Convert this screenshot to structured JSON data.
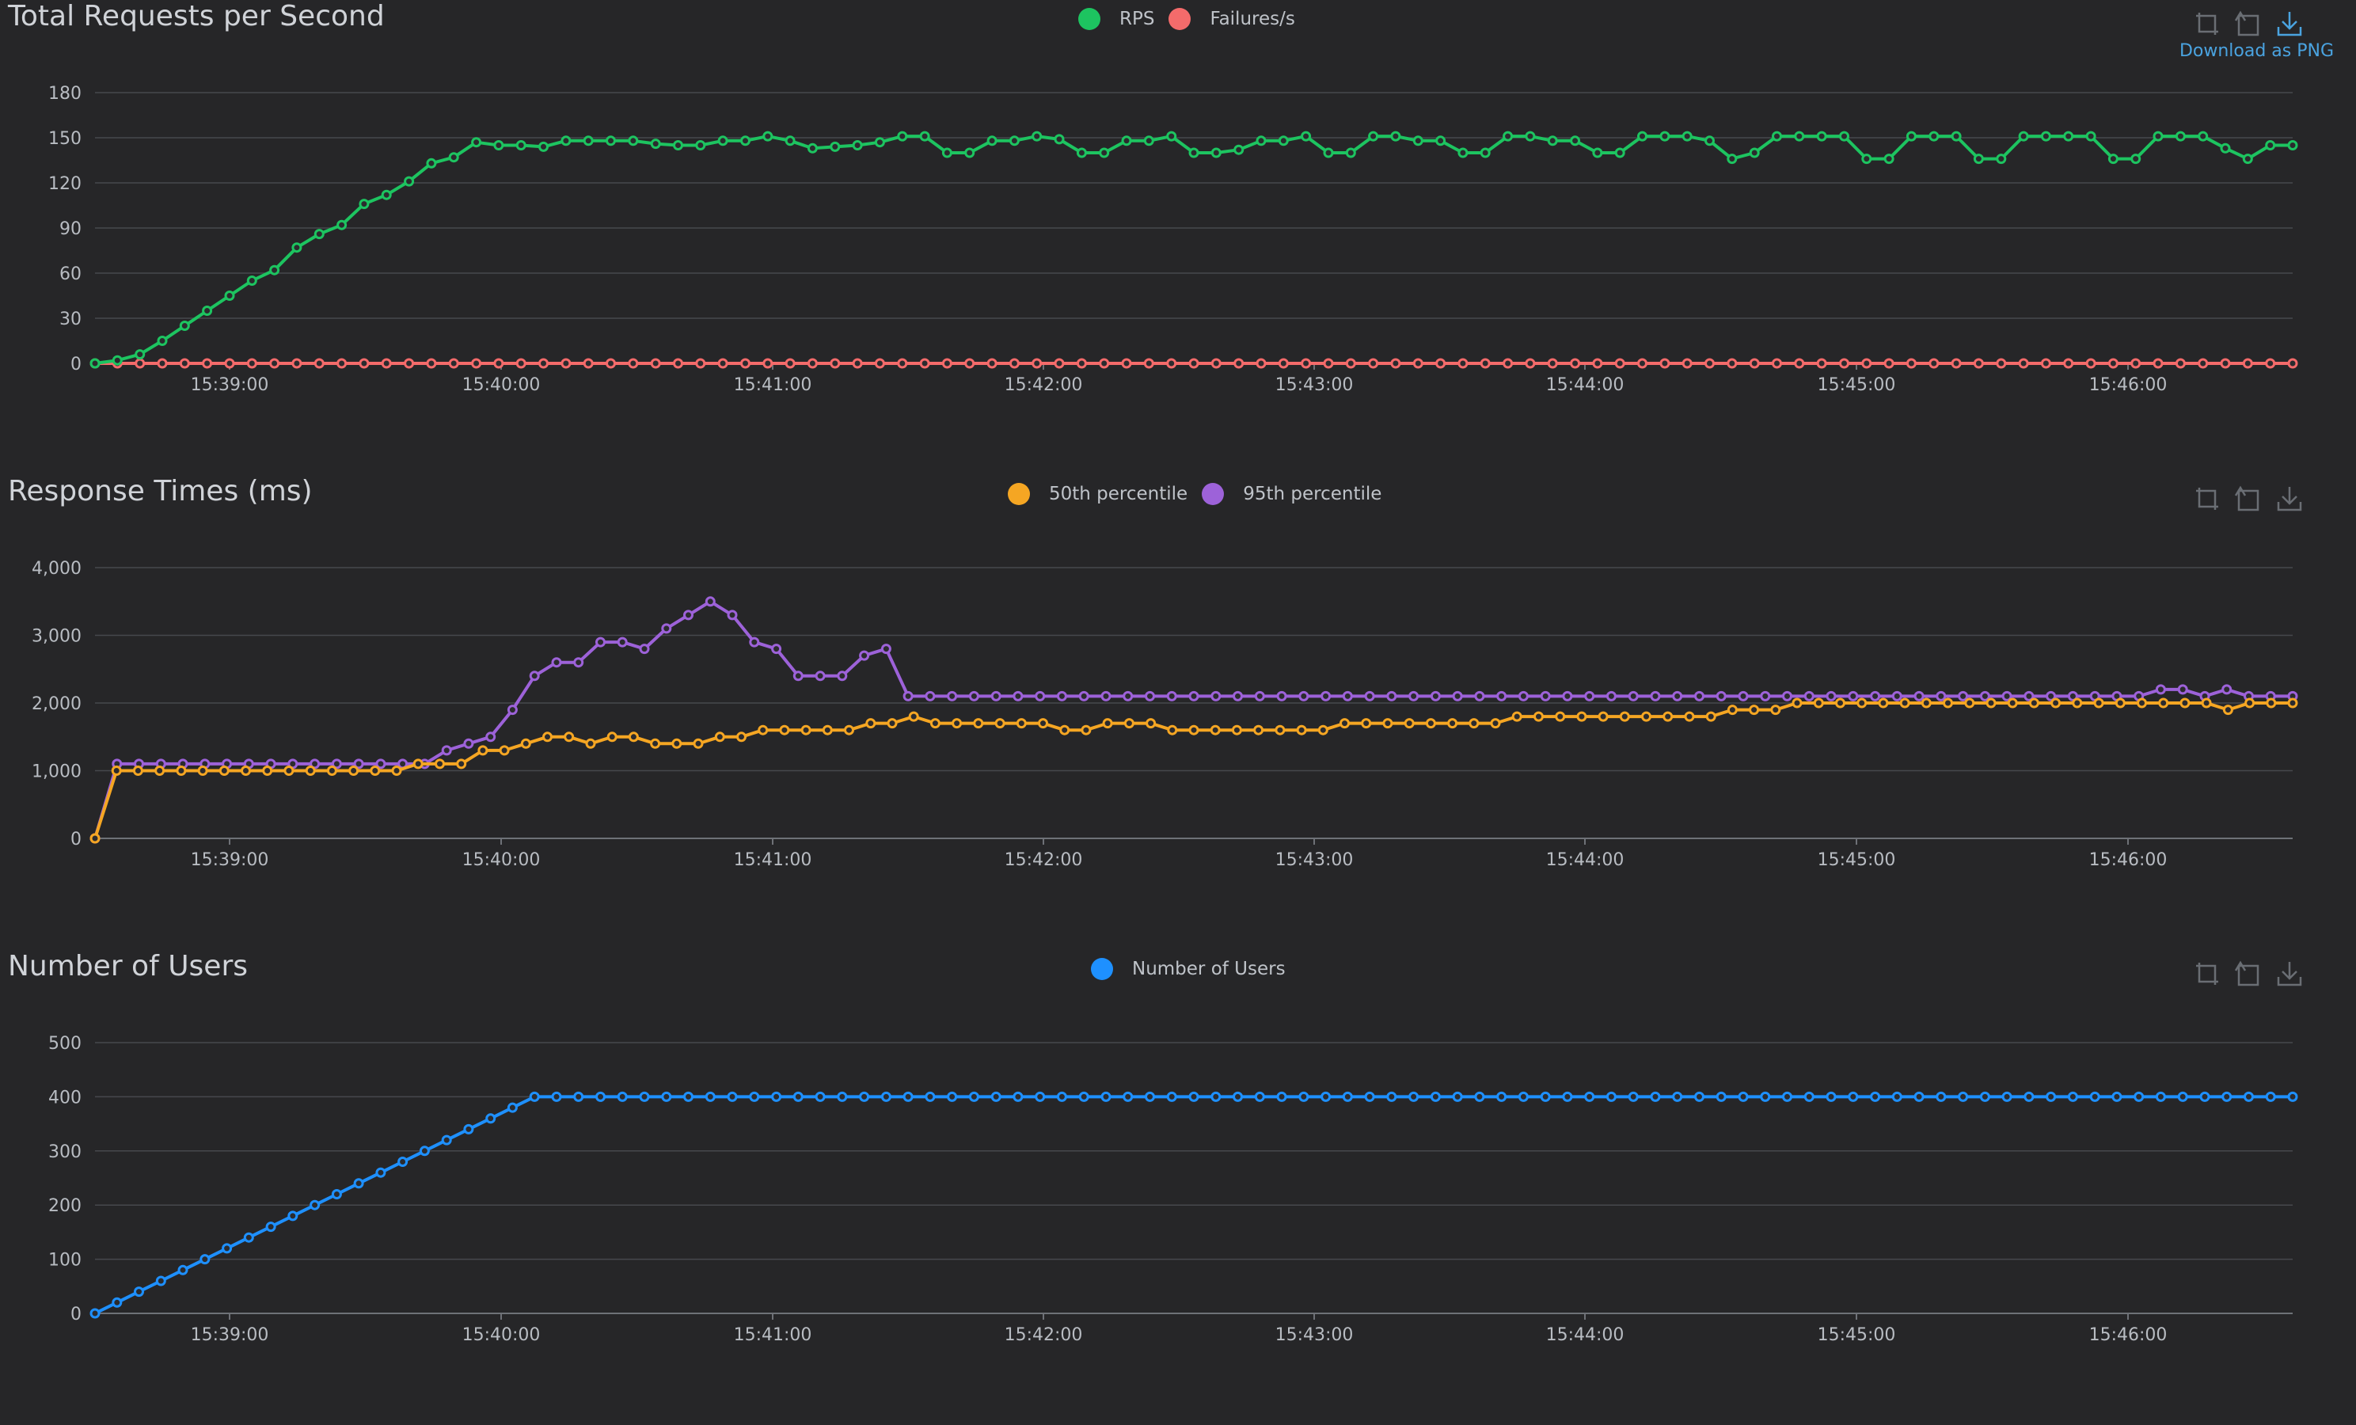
{
  "toolbox": {
    "zoom_icon": "zoom-icon",
    "restore_icon": "restore-icon",
    "download_icon": "download-icon",
    "download_label": "Download as PNG"
  },
  "x_ticks": [
    "15:39:00",
    "15:40:00",
    "15:41:00",
    "15:42:00",
    "15:43:00",
    "15:44:00",
    "15:45:00",
    "15:46:00"
  ],
  "chart_data": [
    {
      "type": "line",
      "title": "Total Requests per Second",
      "ylim": [
        0,
        180
      ],
      "y_ticks": [
        "0",
        "30",
        "60",
        "90",
        "120",
        "150",
        "180"
      ],
      "grid": true,
      "legend_position": "top-center",
      "series": [
        {
          "name": "RPS",
          "color": "#1dc460",
          "values": [
            0,
            2,
            6,
            15,
            25,
            35,
            45,
            55,
            62,
            77,
            86,
            92,
            106,
            112,
            121,
            133,
            137,
            147,
            145,
            145,
            144,
            148,
            148,
            148,
            148,
            146,
            145,
            145,
            148,
            148,
            151,
            148,
            143,
            144,
            145,
            147,
            151,
            151,
            140,
            140,
            148,
            148,
            151,
            149,
            140,
            140,
            148,
            148,
            151,
            140,
            140,
            142,
            148,
            148,
            151,
            140,
            140,
            151,
            151,
            148,
            148,
            140,
            140,
            151,
            151,
            148,
            148,
            140,
            140,
            151,
            151,
            151,
            148,
            136,
            140,
            151,
            151,
            151,
            151,
            136,
            136,
            151,
            151,
            151,
            136,
            136,
            151,
            151,
            151,
            151,
            136,
            136,
            151,
            151,
            151,
            143,
            136,
            145,
            145
          ]
        },
        {
          "name": "Failures/s",
          "color": "#f46b6b",
          "values": [
            0,
            0,
            0,
            0,
            0,
            0,
            0,
            0,
            0,
            0,
            0,
            0,
            0,
            0,
            0,
            0,
            0,
            0,
            0,
            0,
            0,
            0,
            0,
            0,
            0,
            0,
            0,
            0,
            0,
            0,
            0,
            0,
            0,
            0,
            0,
            0,
            0,
            0,
            0,
            0,
            0,
            0,
            0,
            0,
            0,
            0,
            0,
            0,
            0,
            0,
            0,
            0,
            0,
            0,
            0,
            0,
            0,
            0,
            0,
            0,
            0,
            0,
            0,
            0,
            0,
            0,
            0,
            0,
            0,
            0,
            0,
            0,
            0,
            0,
            0,
            0,
            0,
            0,
            0,
            0,
            0,
            0,
            0,
            0,
            0,
            0,
            0,
            0,
            0,
            0,
            0,
            0,
            0,
            0,
            0,
            0,
            0,
            0,
            0
          ]
        }
      ]
    },
    {
      "type": "line",
      "title": "Response Times (ms)",
      "ylim": [
        0,
        4000
      ],
      "y_ticks": [
        "0",
        "1,000",
        "2,000",
        "3,000",
        "4,000"
      ],
      "grid": true,
      "legend_position": "top-center",
      "series": [
        {
          "name": "50th percentile",
          "color": "#f5a623",
          "values": [
            0,
            1000,
            1000,
            1000,
            1000,
            1000,
            1000,
            1000,
            1000,
            1000,
            1000,
            1000,
            1000,
            1000,
            1000,
            1100,
            1100,
            1100,
            1300,
            1300,
            1400,
            1500,
            1500,
            1400,
            1500,
            1500,
            1400,
            1400,
            1400,
            1500,
            1500,
            1600,
            1600,
            1600,
            1600,
            1600,
            1700,
            1700,
            1800,
            1700,
            1700,
            1700,
            1700,
            1700,
            1700,
            1600,
            1600,
            1700,
            1700,
            1700,
            1600,
            1600,
            1600,
            1600,
            1600,
            1600,
            1600,
            1600,
            1700,
            1700,
            1700,
            1700,
            1700,
            1700,
            1700,
            1700,
            1800,
            1800,
            1800,
            1800,
            1800,
            1800,
            1800,
            1800,
            1800,
            1800,
            1900,
            1900,
            1900,
            2000,
            2000,
            2000,
            2000,
            2000,
            2000,
            2000,
            2000,
            2000,
            2000,
            2000,
            2000,
            2000,
            2000,
            2000,
            2000,
            2000,
            2000,
            2000,
            2000,
            1900,
            2000,
            2000,
            2000
          ]
        },
        {
          "name": "95th percentile",
          "color": "#9d62d9",
          "values": [
            0,
            1100,
            1100,
            1100,
            1100,
            1100,
            1100,
            1100,
            1100,
            1100,
            1100,
            1100,
            1100,
            1100,
            1100,
            1100,
            1300,
            1400,
            1500,
            1900,
            2400,
            2600,
            2600,
            2900,
            2900,
            2800,
            3100,
            3300,
            3500,
            3300,
            2900,
            2800,
            2400,
            2400,
            2400,
            2700,
            2800,
            2100,
            2100,
            2100,
            2100,
            2100,
            2100,
            2100,
            2100,
            2100,
            2100,
            2100,
            2100,
            2100,
            2100,
            2100,
            2100,
            2100,
            2100,
            2100,
            2100,
            2100,
            2100,
            2100,
            2100,
            2100,
            2100,
            2100,
            2100,
            2100,
            2100,
            2100,
            2100,
            2100,
            2100,
            2100,
            2100,
            2100,
            2100,
            2100,
            2100,
            2100,
            2100,
            2100,
            2100,
            2100,
            2100,
            2100,
            2100,
            2100,
            2100,
            2100,
            2100,
            2100,
            2100,
            2100,
            2100,
            2100,
            2200,
            2200,
            2100,
            2200,
            2100,
            2100,
            2100
          ]
        }
      ]
    },
    {
      "type": "line",
      "title": "Number of Users",
      "ylim": [
        0,
        500
      ],
      "y_ticks": [
        "0",
        "100",
        "200",
        "300",
        "400",
        "500"
      ],
      "grid": true,
      "legend_position": "top-center",
      "series": [
        {
          "name": "Number of Users",
          "color": "#1e90ff",
          "values": [
            0,
            20,
            40,
            60,
            80,
            100,
            120,
            140,
            160,
            180,
            200,
            220,
            240,
            260,
            280,
            300,
            320,
            340,
            360,
            380,
            400,
            400,
            400,
            400,
            400,
            400,
            400,
            400,
            400,
            400,
            400,
            400,
            400,
            400,
            400,
            400,
            400,
            400,
            400,
            400,
            400,
            400,
            400,
            400,
            400,
            400,
            400,
            400,
            400,
            400,
            400,
            400,
            400,
            400,
            400,
            400,
            400,
            400,
            400,
            400,
            400,
            400,
            400,
            400,
            400,
            400,
            400,
            400,
            400,
            400,
            400,
            400,
            400,
            400,
            400,
            400,
            400,
            400,
            400,
            400,
            400,
            400,
            400,
            400,
            400,
            400,
            400,
            400,
            400,
            400,
            400,
            400,
            400,
            400,
            400,
            400,
            400,
            400,
            400,
            400,
            400
          ]
        }
      ]
    }
  ]
}
